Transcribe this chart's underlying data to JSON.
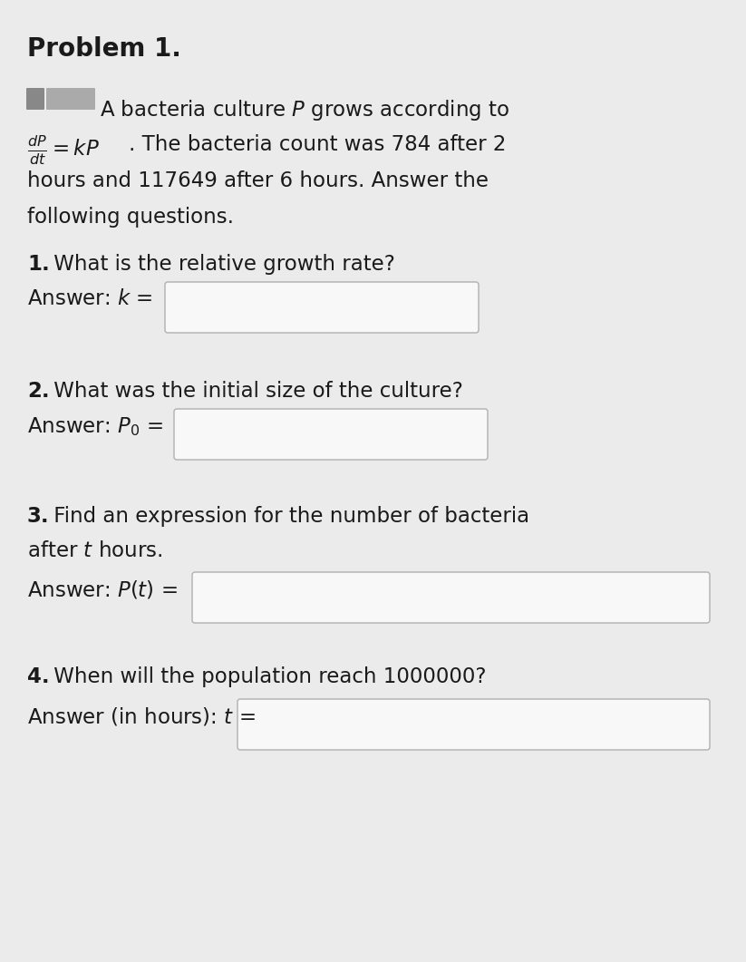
{
  "title": "Problem 1.",
  "background_color": "#ebebeb",
  "box_color": "#f8f8f8",
  "box_border_color": "#b0b0b0",
  "text_color": "#1a1a1a",
  "blur_color": "#b8b8b8",
  "intro_line1": "A bacteria culture $P$ grows according to",
  "intro_line2_a": "$\\frac{dP}{dt} = kP$",
  "intro_line2_b": ". The bacteria count was 784 after 2",
  "intro_line3": "hours and 117649 after 6 hours. Answer the",
  "intro_line4": "following questions.",
  "q1_bold": "1.",
  "q1_text": " What is the relative growth rate?",
  "q1_answer_prefix": "Answer: $k$ =",
  "q2_bold": "2.",
  "q2_text": " What was the initial size of the culture?",
  "q2_answer_prefix": "Answer: $P_0$ =",
  "q3_bold": "3.",
  "q3_text": " Find an expression for the number of bacteria",
  "q3_text2": "after $t$ hours.",
  "q3_answer_prefix": "Answer: $P(t)$ =",
  "q4_bold": "4.",
  "q4_text": " When will the population reach 1000000?",
  "q4_answer_prefix": "Answer (in hours): $t$ =",
  "font_size_title": 20,
  "font_size_body": 16.5,
  "font_size_answer": 16.5
}
